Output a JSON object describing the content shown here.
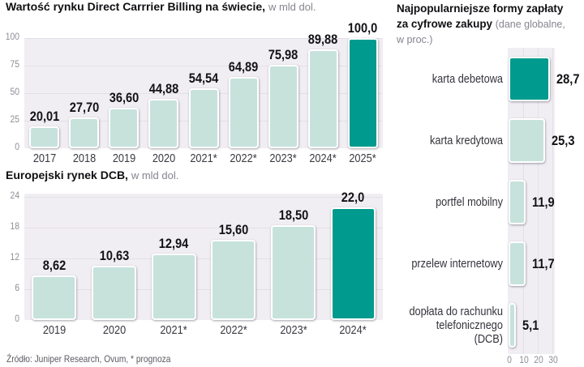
{
  "source": "Źródło: Juniper Research, Ovum, * prognoza",
  "colors": {
    "bar_light": "#c6e2db",
    "bar_accent": "#009a8e",
    "plot_bg": "#f1eef3",
    "grid": "#e3dfe7",
    "tick_text": "#8d8d96",
    "label_text": "#3a3a42",
    "value_text": "#121216"
  },
  "chart_data": [
    {
      "type": "bar",
      "title": "Wartość rynku Direct Carrrier Billing na świecie,",
      "subtitle": "w mld dol.",
      "categories": [
        "2017",
        "2018",
        "2019",
        "2020",
        "2021*",
        "2022*",
        "2023*",
        "2024*",
        "2025*"
      ],
      "values": [
        20.01,
        27.7,
        36.6,
        44.88,
        54.54,
        64.89,
        75.98,
        89.88,
        100.0
      ],
      "value_labels": [
        "20,01",
        "27,70",
        "36,60",
        "44,88",
        "54,54",
        "64,89",
        "75,98",
        "89,88",
        "100,0"
      ],
      "yticks": [
        0,
        25,
        50,
        75,
        100
      ],
      "ylim": [
        0,
        100
      ],
      "highlight": "last"
    },
    {
      "type": "bar",
      "title": "Europejski rynek DCB,",
      "subtitle": "w mld dol.",
      "categories": [
        "2019",
        "2020",
        "2021*",
        "2022*",
        "2023*",
        "2024*"
      ],
      "values": [
        8.62,
        10.63,
        12.94,
        15.6,
        18.5,
        22.0
      ],
      "value_labels": [
        "8,62",
        "10,63",
        "12,94",
        "15,60",
        "18,50",
        "22,0"
      ],
      "yticks": [
        0,
        6,
        12,
        18,
        24
      ],
      "ylim": [
        0,
        24
      ],
      "highlight": "last"
    },
    {
      "type": "bar-horizontal",
      "title": "Najpopularniejsze formy zapłaty za cyfrowe zakupy",
      "subtitle": "(dane globalne, w proc.)",
      "categories": [
        "karta debetowa",
        "karta kredytowa",
        "portfel mobilny",
        "przelew internetowy",
        "dopłata do rachunku telefonicznego (DCB)"
      ],
      "values": [
        28.7,
        25.3,
        11.9,
        11.7,
        5.1
      ],
      "value_labels": [
        "28,7",
        "25,3",
        "11,9",
        "11,7",
        "5,1"
      ],
      "xticks": [
        0,
        10,
        20,
        30
      ],
      "xlim": [
        0,
        32
      ],
      "highlight": "first"
    }
  ]
}
